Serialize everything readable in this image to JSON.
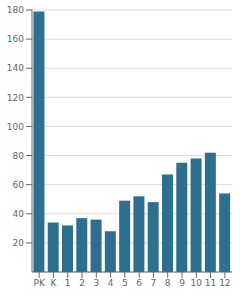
{
  "chart_data": {
    "type": "bar",
    "categories": [
      "PK",
      "K",
      "1",
      "2",
      "3",
      "4",
      "5",
      "6",
      "7",
      "8",
      "9",
      "10",
      "11",
      "12"
    ],
    "values": [
      179,
      34,
      32,
      37,
      36,
      28,
      49,
      52,
      48,
      67,
      75,
      78,
      82,
      54
    ],
    "color": "#2e6e8e",
    "ylim": [
      0,
      180
    ],
    "yticks": [
      20,
      40,
      60,
      80,
      100,
      120,
      140,
      160,
      180
    ],
    "grid": true
  }
}
